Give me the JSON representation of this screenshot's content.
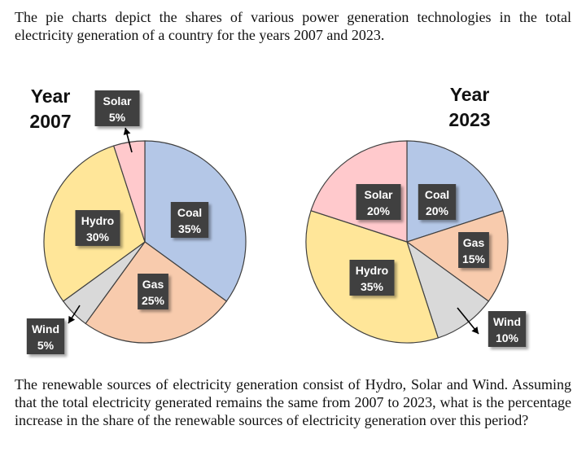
{
  "intro_text": "The pie charts depict the shares of various power generation technologies in the total electricity generation of a country for the years 2007 and 2023.",
  "question_text": "The renewable sources of electricity generation consist of Hydro, Solar and Wind. Assuming that the total electricity generated remains the same from 2007 to 2023, what is the percentage increase in the share of the renewable sources of electricity generation over this period?",
  "colors": {
    "Coal": "#b4c7e7",
    "Gas": "#f8cbad",
    "Wind": "#d9d9d9",
    "Hydro": "#ffe699",
    "Solar": "#ffc9cc",
    "label_bg": "#404040"
  },
  "chart_data": [
    {
      "type": "pie",
      "title_line1": "Year",
      "title_line2": "2007",
      "slices": [
        {
          "label": "Coal",
          "value": 35,
          "value_text": "35%"
        },
        {
          "label": "Gas",
          "value": 25,
          "value_text": "25%"
        },
        {
          "label": "Wind",
          "value": 5,
          "value_text": "5%"
        },
        {
          "label": "Hydro",
          "value": 30,
          "value_text": "30%"
        },
        {
          "label": "Solar",
          "value": 5,
          "value_text": "5%"
        }
      ]
    },
    {
      "type": "pie",
      "title_line1": "Year",
      "title_line2": "2023",
      "slices": [
        {
          "label": "Coal",
          "value": 20,
          "value_text": "20%"
        },
        {
          "label": "Gas",
          "value": 15,
          "value_text": "15%"
        },
        {
          "label": "Wind",
          "value": 10,
          "value_text": "10%"
        },
        {
          "label": "Hydro",
          "value": 35,
          "value_text": "35%"
        },
        {
          "label": "Solar",
          "value": 20,
          "value_text": "20%"
        }
      ]
    }
  ]
}
